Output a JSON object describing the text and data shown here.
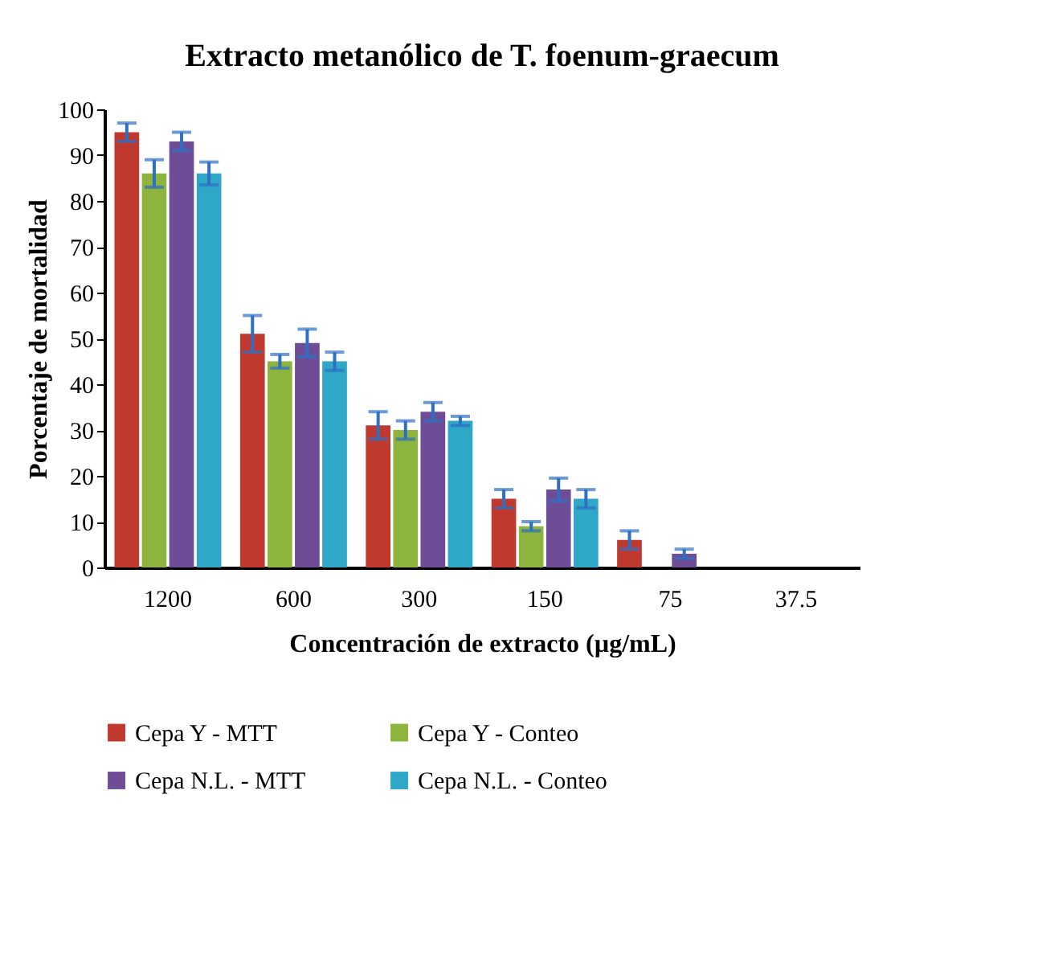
{
  "chart_data": {
    "type": "bar",
    "title": "Extracto metanólico de T. foenum-graecum",
    "xlabel": "Concentración de extracto (µg/mL)",
    "ylabel": "Porcentaje de mortalidad",
    "categories": [
      "1200",
      "600",
      "300",
      "150",
      "75",
      "37.5"
    ],
    "series": [
      {
        "name": "Cepa Y - MTT",
        "color": "#c0392f",
        "values": [
          95,
          51,
          31,
          15,
          6,
          0
        ],
        "errors": [
          2,
          4,
          3,
          2,
          2,
          null
        ]
      },
      {
        "name": "Cepa Y - Conteo",
        "color": "#8db43c",
        "values": [
          86,
          45,
          30,
          9,
          0,
          0
        ],
        "errors": [
          3,
          1.5,
          2,
          1,
          null,
          null
        ]
      },
      {
        "name": "Cepa N.L. - MTT",
        "color": "#6f4d96",
        "values": [
          93,
          49,
          34,
          17,
          3,
          0
        ],
        "errors": [
          2,
          3,
          2,
          2.5,
          1,
          null
        ]
      },
      {
        "name": "Cepa N.L. - Conteo",
        "color": "#2fa8c8",
        "values": [
          86,
          45,
          32,
          15,
          0,
          0
        ],
        "errors": [
          2.5,
          2,
          1,
          2,
          null,
          null
        ]
      }
    ],
    "ylim": [
      0,
      100
    ],
    "yticks": [
      0,
      10,
      20,
      30,
      40,
      50,
      60,
      70,
      80,
      90,
      100
    ],
    "grid": false,
    "legend": "bottom"
  }
}
